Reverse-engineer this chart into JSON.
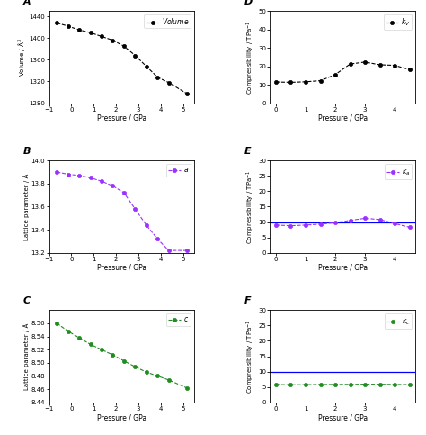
{
  "panel_A": {
    "label": "A",
    "x": [
      -0.65,
      -0.15,
      0.35,
      0.85,
      1.35,
      1.85,
      2.35,
      2.85,
      3.35,
      3.85,
      4.35,
      5.15
    ],
    "y": [
      1428,
      1422,
      1415,
      1410,
      1403,
      1396,
      1385,
      1368,
      1348,
      1328,
      1318,
      1298
    ],
    "color": "black",
    "legend": "Volume",
    "legend_text": "$\\it{Volume}$",
    "xlabel": "Pressure / GPa",
    "ylabel": "Volume / Å$^3$",
    "ylim": [
      1280,
      1450
    ],
    "xlim": [
      -1.0,
      5.5
    ],
    "yticks": [
      1280,
      1320,
      1360,
      1400,
      1440
    ],
    "xticks": [
      -1,
      0,
      1,
      2,
      3,
      4,
      5
    ]
  },
  "panel_B": {
    "label": "B",
    "x": [
      -0.65,
      -0.15,
      0.35,
      0.85,
      1.35,
      1.85,
      2.35,
      2.85,
      3.35,
      3.85,
      4.35,
      5.15
    ],
    "y": [
      13.9,
      13.88,
      13.87,
      13.85,
      13.82,
      13.78,
      13.72,
      13.58,
      13.44,
      13.32,
      13.22,
      13.22
    ],
    "color": "#9B30FF",
    "legend": "a",
    "legend_text": "$\\it{a}$",
    "xlabel": "Pressure / GPa",
    "ylabel": "Lattice parameter / Å",
    "ylim": [
      13.2,
      14.0
    ],
    "xlim": [
      -1.0,
      5.5
    ],
    "yticks": [
      13.2,
      13.4,
      13.6,
      13.8,
      14.0
    ],
    "xticks": [
      -1,
      0,
      1,
      2,
      3,
      4,
      5
    ]
  },
  "panel_C": {
    "label": "C",
    "x": [
      -0.65,
      -0.15,
      0.35,
      0.85,
      1.35,
      1.85,
      2.35,
      2.85,
      3.35,
      3.85,
      4.35,
      5.15
    ],
    "y": [
      8.56,
      8.548,
      8.538,
      8.528,
      8.52,
      8.512,
      8.503,
      8.494,
      8.486,
      8.48,
      8.474,
      8.462
    ],
    "color": "#228B22",
    "legend": "c",
    "legend_text": "$\\it{c}$",
    "xlabel": "Pressure / GPa",
    "ylabel": "Lattice parameter / Å",
    "ylim": [
      8.44,
      8.58
    ],
    "xlim": [
      -1.0,
      5.5
    ],
    "yticks": [
      8.44,
      8.46,
      8.48,
      8.5,
      8.52,
      8.54,
      8.56
    ],
    "xticks": [
      -1,
      0,
      1,
      2,
      3,
      4,
      5
    ]
  },
  "panel_D": {
    "label": "D",
    "x": [
      0.0,
      0.5,
      1.0,
      1.5,
      2.0,
      2.5,
      3.0,
      3.5,
      4.0,
      4.5
    ],
    "y": [
      11.5,
      11.3,
      11.6,
      12.2,
      15.5,
      21.2,
      22.3,
      20.8,
      20.5,
      18.2
    ],
    "color": "black",
    "legend": "k_V",
    "legend_text": "$\\it{k}_V$",
    "xlabel": "Pressure / GPa",
    "ylabel": "Compressibility / TPa$^{-1}$",
    "ylim": [
      0,
      50
    ],
    "xlim": [
      -0.2,
      4.7
    ],
    "yticks": [
      0,
      10,
      20,
      30,
      40,
      50
    ],
    "xticks": [
      0,
      1,
      2,
      3,
      4
    ]
  },
  "panel_E": {
    "label": "E",
    "x": [
      0.0,
      0.5,
      1.0,
      1.5,
      2.0,
      2.5,
      3.0,
      3.5,
      4.0,
      4.5
    ],
    "y": [
      9.0,
      8.8,
      9.0,
      9.3,
      9.8,
      10.5,
      11.2,
      10.8,
      9.5,
      8.3
    ],
    "color": "#9B30FF",
    "legend": "k_a",
    "legend_text": "$\\it{k}_a$",
    "hline": 10.0,
    "xlabel": "Pressure / GPa",
    "ylabel": "Compressibility / TPa$^{-1}$",
    "ylim": [
      0,
      30
    ],
    "xlim": [
      -0.2,
      4.7
    ],
    "yticks": [
      0,
      5,
      10,
      15,
      20,
      25,
      30
    ],
    "xticks": [
      0,
      1,
      2,
      3,
      4
    ]
  },
  "panel_F": {
    "label": "F",
    "x": [
      0.0,
      0.5,
      1.0,
      1.5,
      2.0,
      2.5,
      3.0,
      3.5,
      4.0,
      4.5
    ],
    "y": [
      5.8,
      5.7,
      5.75,
      5.8,
      5.82,
      5.85,
      5.9,
      5.88,
      5.82,
      5.78
    ],
    "color": "#228B22",
    "legend": "k_c",
    "legend_text": "$\\it{k}_c$",
    "hline": 10.0,
    "xlabel": "Pressure / GPa",
    "ylabel": "Compressibility / TPa$^{-1}$",
    "ylim": [
      0,
      30
    ],
    "xlim": [
      -0.2,
      4.7
    ],
    "yticks": [
      0,
      5,
      10,
      15,
      20,
      25,
      30
    ],
    "xticks": [
      0,
      1,
      2,
      3,
      4
    ]
  },
  "bg_color": "white",
  "marker": "o",
  "markersize": 3.0,
  "linewidth": 0.8,
  "linestyle": "--"
}
